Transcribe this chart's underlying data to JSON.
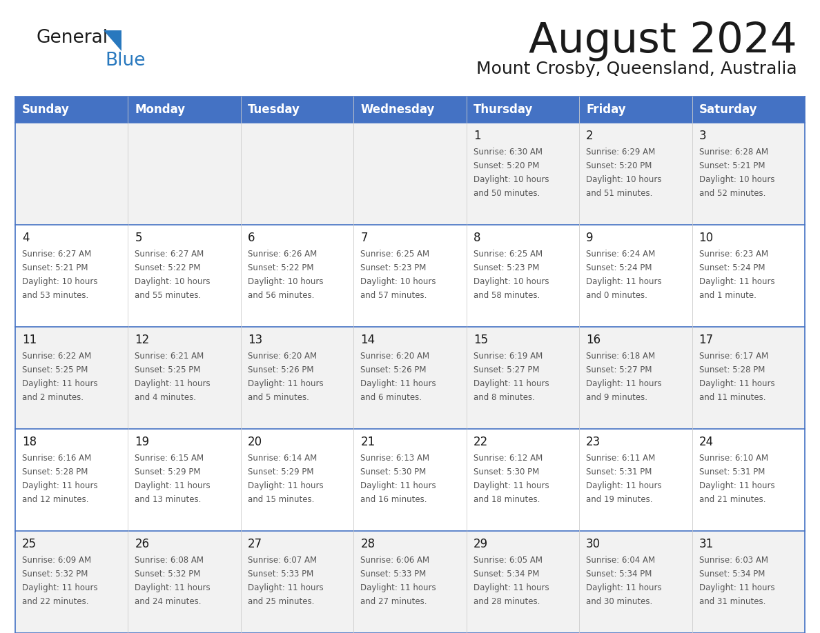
{
  "title": "August 2024",
  "subtitle": "Mount Crosby, Queensland, Australia",
  "header_bg": "#4472C4",
  "header_text_color": "#FFFFFF",
  "days_of_week": [
    "Sunday",
    "Monday",
    "Tuesday",
    "Wednesday",
    "Thursday",
    "Friday",
    "Saturday"
  ],
  "row_bg_odd": "#F2F2F2",
  "row_bg_even": "#FFFFFF",
  "cell_text_color": "#555555",
  "day_num_color": "#1A1A1A",
  "border_color": "#4472C4",
  "calendar_data": [
    [
      {
        "day": "",
        "lines": []
      },
      {
        "day": "",
        "lines": []
      },
      {
        "day": "",
        "lines": []
      },
      {
        "day": "",
        "lines": []
      },
      {
        "day": "1",
        "lines": [
          "Sunrise: 6:30 AM",
          "Sunset: 5:20 PM",
          "Daylight: 10 hours",
          "and 50 minutes."
        ]
      },
      {
        "day": "2",
        "lines": [
          "Sunrise: 6:29 AM",
          "Sunset: 5:20 PM",
          "Daylight: 10 hours",
          "and 51 minutes."
        ]
      },
      {
        "day": "3",
        "lines": [
          "Sunrise: 6:28 AM",
          "Sunset: 5:21 PM",
          "Daylight: 10 hours",
          "and 52 minutes."
        ]
      }
    ],
    [
      {
        "day": "4",
        "lines": [
          "Sunrise: 6:27 AM",
          "Sunset: 5:21 PM",
          "Daylight: 10 hours",
          "and 53 minutes."
        ]
      },
      {
        "day": "5",
        "lines": [
          "Sunrise: 6:27 AM",
          "Sunset: 5:22 PM",
          "Daylight: 10 hours",
          "and 55 minutes."
        ]
      },
      {
        "day": "6",
        "lines": [
          "Sunrise: 6:26 AM",
          "Sunset: 5:22 PM",
          "Daylight: 10 hours",
          "and 56 minutes."
        ]
      },
      {
        "day": "7",
        "lines": [
          "Sunrise: 6:25 AM",
          "Sunset: 5:23 PM",
          "Daylight: 10 hours",
          "and 57 minutes."
        ]
      },
      {
        "day": "8",
        "lines": [
          "Sunrise: 6:25 AM",
          "Sunset: 5:23 PM",
          "Daylight: 10 hours",
          "and 58 minutes."
        ]
      },
      {
        "day": "9",
        "lines": [
          "Sunrise: 6:24 AM",
          "Sunset: 5:24 PM",
          "Daylight: 11 hours",
          "and 0 minutes."
        ]
      },
      {
        "day": "10",
        "lines": [
          "Sunrise: 6:23 AM",
          "Sunset: 5:24 PM",
          "Daylight: 11 hours",
          "and 1 minute."
        ]
      }
    ],
    [
      {
        "day": "11",
        "lines": [
          "Sunrise: 6:22 AM",
          "Sunset: 5:25 PM",
          "Daylight: 11 hours",
          "and 2 minutes."
        ]
      },
      {
        "day": "12",
        "lines": [
          "Sunrise: 6:21 AM",
          "Sunset: 5:25 PM",
          "Daylight: 11 hours",
          "and 4 minutes."
        ]
      },
      {
        "day": "13",
        "lines": [
          "Sunrise: 6:20 AM",
          "Sunset: 5:26 PM",
          "Daylight: 11 hours",
          "and 5 minutes."
        ]
      },
      {
        "day": "14",
        "lines": [
          "Sunrise: 6:20 AM",
          "Sunset: 5:26 PM",
          "Daylight: 11 hours",
          "and 6 minutes."
        ]
      },
      {
        "day": "15",
        "lines": [
          "Sunrise: 6:19 AM",
          "Sunset: 5:27 PM",
          "Daylight: 11 hours",
          "and 8 minutes."
        ]
      },
      {
        "day": "16",
        "lines": [
          "Sunrise: 6:18 AM",
          "Sunset: 5:27 PM",
          "Daylight: 11 hours",
          "and 9 minutes."
        ]
      },
      {
        "day": "17",
        "lines": [
          "Sunrise: 6:17 AM",
          "Sunset: 5:28 PM",
          "Daylight: 11 hours",
          "and 11 minutes."
        ]
      }
    ],
    [
      {
        "day": "18",
        "lines": [
          "Sunrise: 6:16 AM",
          "Sunset: 5:28 PM",
          "Daylight: 11 hours",
          "and 12 minutes."
        ]
      },
      {
        "day": "19",
        "lines": [
          "Sunrise: 6:15 AM",
          "Sunset: 5:29 PM",
          "Daylight: 11 hours",
          "and 13 minutes."
        ]
      },
      {
        "day": "20",
        "lines": [
          "Sunrise: 6:14 AM",
          "Sunset: 5:29 PM",
          "Daylight: 11 hours",
          "and 15 minutes."
        ]
      },
      {
        "day": "21",
        "lines": [
          "Sunrise: 6:13 AM",
          "Sunset: 5:30 PM",
          "Daylight: 11 hours",
          "and 16 minutes."
        ]
      },
      {
        "day": "22",
        "lines": [
          "Sunrise: 6:12 AM",
          "Sunset: 5:30 PM",
          "Daylight: 11 hours",
          "and 18 minutes."
        ]
      },
      {
        "day": "23",
        "lines": [
          "Sunrise: 6:11 AM",
          "Sunset: 5:31 PM",
          "Daylight: 11 hours",
          "and 19 minutes."
        ]
      },
      {
        "day": "24",
        "lines": [
          "Sunrise: 6:10 AM",
          "Sunset: 5:31 PM",
          "Daylight: 11 hours",
          "and 21 minutes."
        ]
      }
    ],
    [
      {
        "day": "25",
        "lines": [
          "Sunrise: 6:09 AM",
          "Sunset: 5:32 PM",
          "Daylight: 11 hours",
          "and 22 minutes."
        ]
      },
      {
        "day": "26",
        "lines": [
          "Sunrise: 6:08 AM",
          "Sunset: 5:32 PM",
          "Daylight: 11 hours",
          "and 24 minutes."
        ]
      },
      {
        "day": "27",
        "lines": [
          "Sunrise: 6:07 AM",
          "Sunset: 5:33 PM",
          "Daylight: 11 hours",
          "and 25 minutes."
        ]
      },
      {
        "day": "28",
        "lines": [
          "Sunrise: 6:06 AM",
          "Sunset: 5:33 PM",
          "Daylight: 11 hours",
          "and 27 minutes."
        ]
      },
      {
        "day": "29",
        "lines": [
          "Sunrise: 6:05 AM",
          "Sunset: 5:34 PM",
          "Daylight: 11 hours",
          "and 28 minutes."
        ]
      },
      {
        "day": "30",
        "lines": [
          "Sunrise: 6:04 AM",
          "Sunset: 5:34 PM",
          "Daylight: 11 hours",
          "and 30 minutes."
        ]
      },
      {
        "day": "31",
        "lines": [
          "Sunrise: 6:03 AM",
          "Sunset: 5:34 PM",
          "Daylight: 11 hours",
          "and 31 minutes."
        ]
      }
    ]
  ],
  "logo_general_color": "#1A1A1A",
  "logo_blue_color": "#2878BE",
  "logo_triangle_color": "#2878BE"
}
